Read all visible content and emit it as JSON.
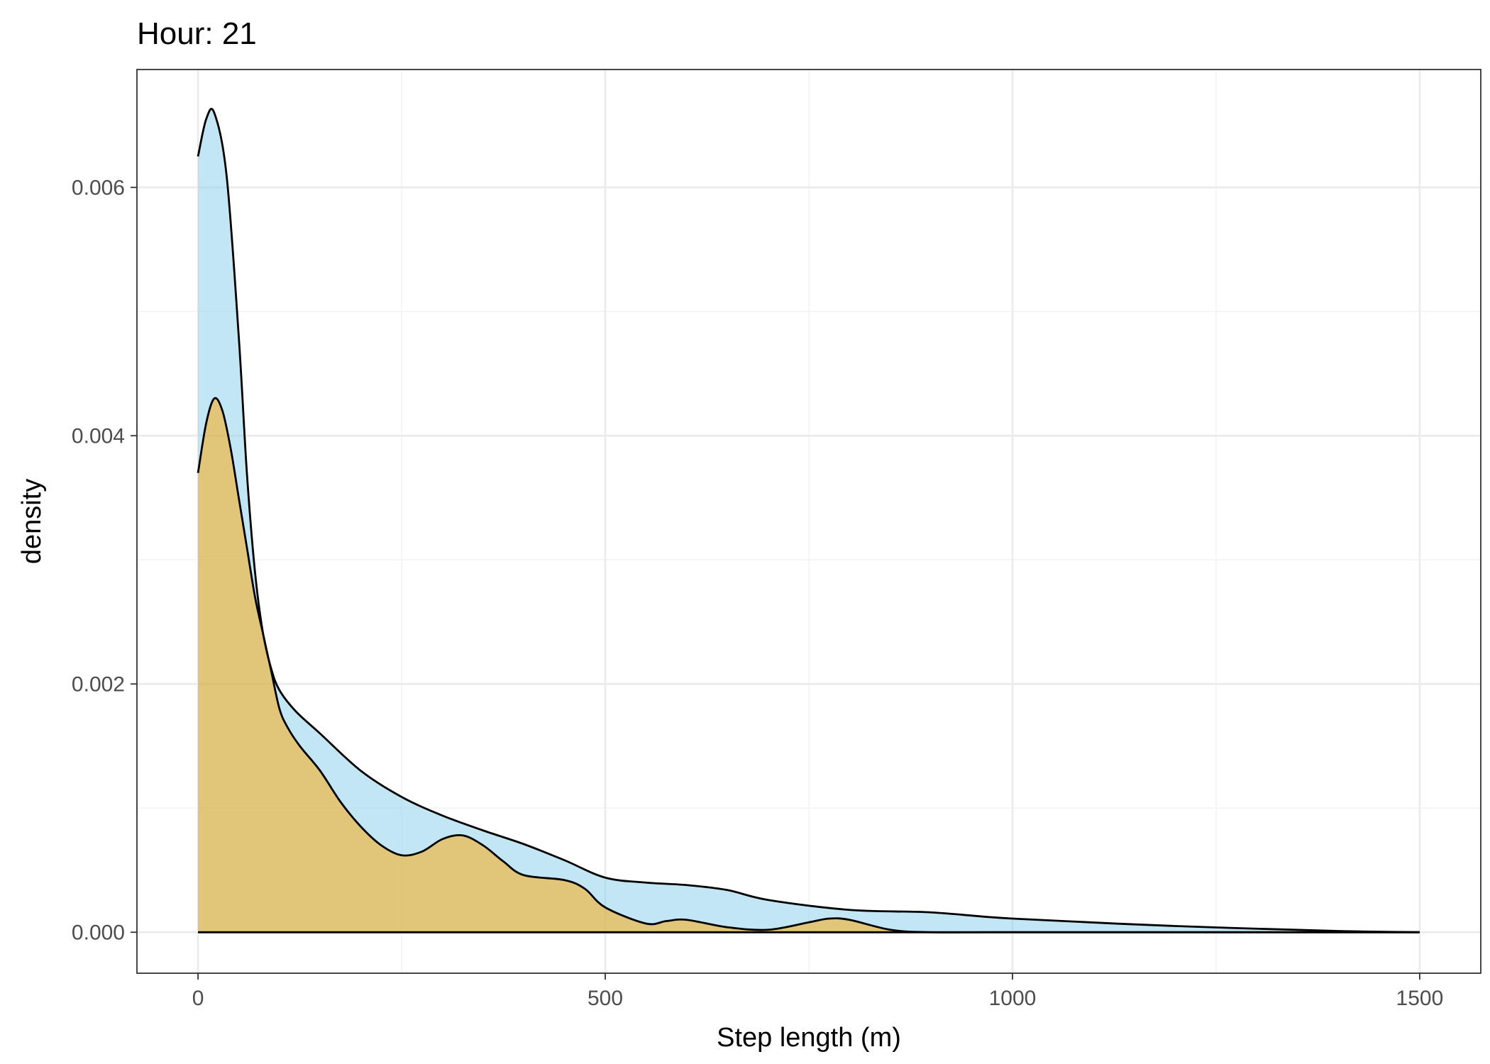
{
  "chart_data": {
    "type": "area",
    "title": "Hour: 21",
    "xlabel": "Step length (m)",
    "ylabel": "density",
    "xlim": [
      -75,
      1575
    ],
    "ylim": [
      -0.00033,
      0.00695
    ],
    "x_ticks": [
      0,
      500,
      1000,
      1500
    ],
    "x_tick_labels": [
      "0",
      "500",
      "1000",
      "1500"
    ],
    "y_ticks": [
      0,
      0.002,
      0.004,
      0.006
    ],
    "y_tick_labels": [
      "0.000",
      "0.002",
      "0.004",
      "0.006"
    ],
    "grid": true,
    "legend": "none",
    "series": [
      {
        "fill": "#87CEEB",
        "fill_opacity": 0.5,
        "line_color": "#000000",
        "x": [
          0,
          10,
          20,
          35,
          50,
          60,
          70,
          80,
          90,
          100,
          120,
          150,
          200,
          250,
          300,
          350,
          400,
          450,
          500,
          550,
          600,
          650,
          700,
          800,
          900,
          1000,
          1200,
          1400,
          1500
        ],
        "y": [
          0.00625,
          0.00655,
          0.0066,
          0.0061,
          0.0048,
          0.0037,
          0.0029,
          0.0024,
          0.00212,
          0.00195,
          0.00178,
          0.0016,
          0.0013,
          0.00109,
          0.00094,
          0.00082,
          0.00071,
          0.00058,
          0.00044,
          0.0004,
          0.00038,
          0.00034,
          0.00026,
          0.00018,
          0.00016,
          0.00011,
          5e-05,
          1e-05,
          0.0
        ]
      },
      {
        "fill": "#FFA500",
        "fill_opacity": 0.5,
        "line_color": "#000000",
        "x": [
          0,
          10,
          20,
          30,
          40,
          50,
          60,
          70,
          80,
          90,
          100,
          110,
          125,
          150,
          175,
          200,
          225,
          250,
          275,
          300,
          325,
          350,
          375,
          400,
          450,
          475,
          500,
          550,
          575,
          600,
          650,
          700,
          750,
          775,
          800,
          850,
          900,
          1000,
          1500
        ],
        "y": [
          0.0037,
          0.0041,
          0.0043,
          0.0042,
          0.0039,
          0.0035,
          0.0031,
          0.0027,
          0.0024,
          0.0021,
          0.0018,
          0.00165,
          0.0015,
          0.0013,
          0.00105,
          0.00085,
          0.0007,
          0.00062,
          0.00065,
          0.00075,
          0.00078,
          0.0007,
          0.00057,
          0.00046,
          0.00042,
          0.00035,
          0.0002,
          7e-05,
          9e-05,
          0.0001,
          4e-05,
          2e-05,
          8e-05,
          0.00011,
          0.0001,
          2e-05,
          0.0,
          0.0,
          0.0
        ]
      }
    ]
  }
}
